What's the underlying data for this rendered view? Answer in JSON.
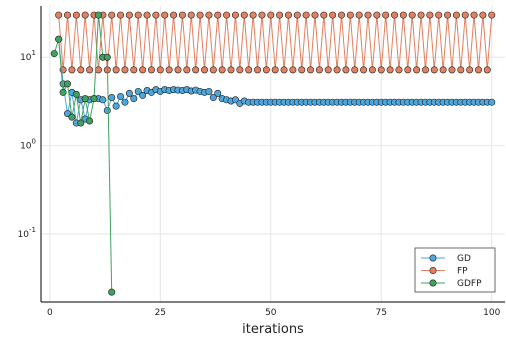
{
  "chart_data": {
    "type": "line",
    "title": "",
    "xlabel": "iterations",
    "ylabel": "",
    "xlim": [
      -2,
      103
    ],
    "ylim": [
      0.017,
      38
    ],
    "yscale": "log10",
    "grid": true,
    "legend_position": "bottom-right",
    "x_ticks": [
      0,
      25,
      50,
      75,
      100
    ],
    "y_ticks": [
      {
        "value": 0.1,
        "base": "10",
        "exp": "-1"
      },
      {
        "value": 1,
        "base": "10",
        "exp": "0"
      },
      {
        "value": 10,
        "base": "10",
        "exp": "1"
      }
    ],
    "series": [
      {
        "name": "GD",
        "color": "#4da6dd",
        "x": [
          2,
          3,
          4,
          5,
          6,
          7,
          8,
          9,
          10,
          11,
          12,
          13,
          14,
          15,
          16,
          17,
          18,
          19,
          20,
          21,
          22,
          23,
          24,
          25,
          26,
          27,
          28,
          29,
          30,
          31,
          32,
          33,
          34,
          35,
          36,
          37,
          38,
          39,
          40,
          41,
          42,
          43,
          44,
          45,
          46,
          47,
          48,
          49,
          50,
          51,
          52,
          53,
          54,
          55,
          56,
          57,
          58,
          59,
          60,
          61,
          62,
          63,
          64,
          65,
          66,
          67,
          68,
          69,
          70,
          71,
          72,
          73,
          74,
          75,
          76,
          77,
          78,
          79,
          80,
          81,
          82,
          83,
          84,
          85,
          86,
          87,
          88,
          89,
          90,
          91,
          92,
          93,
          94,
          95,
          96,
          97,
          98,
          99,
          100
        ],
        "y": [
          16,
          5,
          2.3,
          4,
          1.8,
          3.3,
          2,
          3.3,
          3.4,
          3.4,
          3.3,
          2.5,
          3.5,
          2.8,
          3.6,
          3.1,
          3.9,
          3.4,
          4.1,
          3.7,
          4.2,
          4.0,
          4.3,
          4.1,
          4.3,
          4.2,
          4.3,
          4.25,
          4.2,
          4.3,
          4.15,
          4.25,
          4.1,
          4.0,
          4.1,
          3.5,
          3.9,
          3.4,
          3.3,
          3.2,
          3.3,
          3.0,
          3.2,
          3.1,
          3.1,
          3.1,
          3.1,
          3.1,
          3.1,
          3.1,
          3.1,
          3.1,
          3.1,
          3.1,
          3.1,
          3.1,
          3.1,
          3.1,
          3.1,
          3.1,
          3.1,
          3.1,
          3.1,
          3.1,
          3.1,
          3.1,
          3.1,
          3.1,
          3.1,
          3.1,
          3.1,
          3.1,
          3.1,
          3.1,
          3.1,
          3.1,
          3.1,
          3.1,
          3.1,
          3.1,
          3.1,
          3.1,
          3.1,
          3.1,
          3.1,
          3.1,
          3.1,
          3.1,
          3.1,
          3.1,
          3.1,
          3.1,
          3.1,
          3.1,
          3.1,
          3.1,
          3.1,
          3.1,
          3.1
        ]
      },
      {
        "name": "FP",
        "color": "#e28060",
        "x": [
          2,
          3,
          4,
          5,
          6,
          7,
          8,
          9,
          10,
          11,
          12,
          13,
          14,
          15,
          16,
          17,
          18,
          19,
          20,
          21,
          22,
          23,
          24,
          25,
          26,
          27,
          28,
          29,
          30,
          31,
          32,
          33,
          34,
          35,
          36,
          37,
          38,
          39,
          40,
          41,
          42,
          43,
          44,
          45,
          46,
          47,
          48,
          49,
          50,
          51,
          52,
          53,
          54,
          55,
          56,
          57,
          58,
          59,
          60,
          61,
          62,
          63,
          64,
          65,
          66,
          67,
          68,
          69,
          70,
          71,
          72,
          73,
          74,
          75,
          76,
          77,
          78,
          79,
          80,
          81,
          82,
          83,
          84,
          85,
          86,
          87,
          88,
          89,
          90,
          91,
          92,
          93,
          94,
          95,
          96,
          97,
          98,
          99,
          100
        ],
        "y": [
          30,
          7.2,
          30,
          7.2,
          30,
          7.2,
          30,
          7.2,
          30,
          7.2,
          30,
          7.2,
          30,
          7.2,
          30,
          7.2,
          30,
          7.2,
          30,
          7.2,
          30,
          7.2,
          30,
          7.2,
          30,
          7.2,
          30,
          7.2,
          30,
          7.2,
          30,
          7.2,
          30,
          7.2,
          30,
          7.2,
          30,
          7.2,
          30,
          7.2,
          30,
          7.2,
          30,
          7.2,
          30,
          7.2,
          30,
          7.2,
          30,
          7.2,
          30,
          7.2,
          30,
          7.2,
          30,
          7.2,
          30,
          7.2,
          30,
          7.2,
          30,
          7.2,
          30,
          7.2,
          30,
          7.2,
          30,
          7.2,
          30,
          7.2,
          30,
          7.2,
          30,
          7.2,
          30,
          7.2,
          30,
          7.2,
          30,
          7.2,
          30,
          7.2,
          30,
          7.2,
          30,
          7.2,
          30,
          7.2,
          30,
          7.2,
          30,
          7.2,
          30,
          7.2,
          30,
          7.2,
          30,
          7.2,
          30
        ]
      },
      {
        "name": "GDFP",
        "color": "#3fa35f",
        "x": [
          1,
          2,
          3,
          4,
          5,
          6,
          7,
          8,
          9,
          10,
          11,
          12,
          13,
          14
        ],
        "y": [
          11,
          16,
          4,
          5,
          2.1,
          3.8,
          1.8,
          3.4,
          1.9,
          3.4,
          30,
          10,
          10,
          0.022
        ]
      }
    ]
  }
}
